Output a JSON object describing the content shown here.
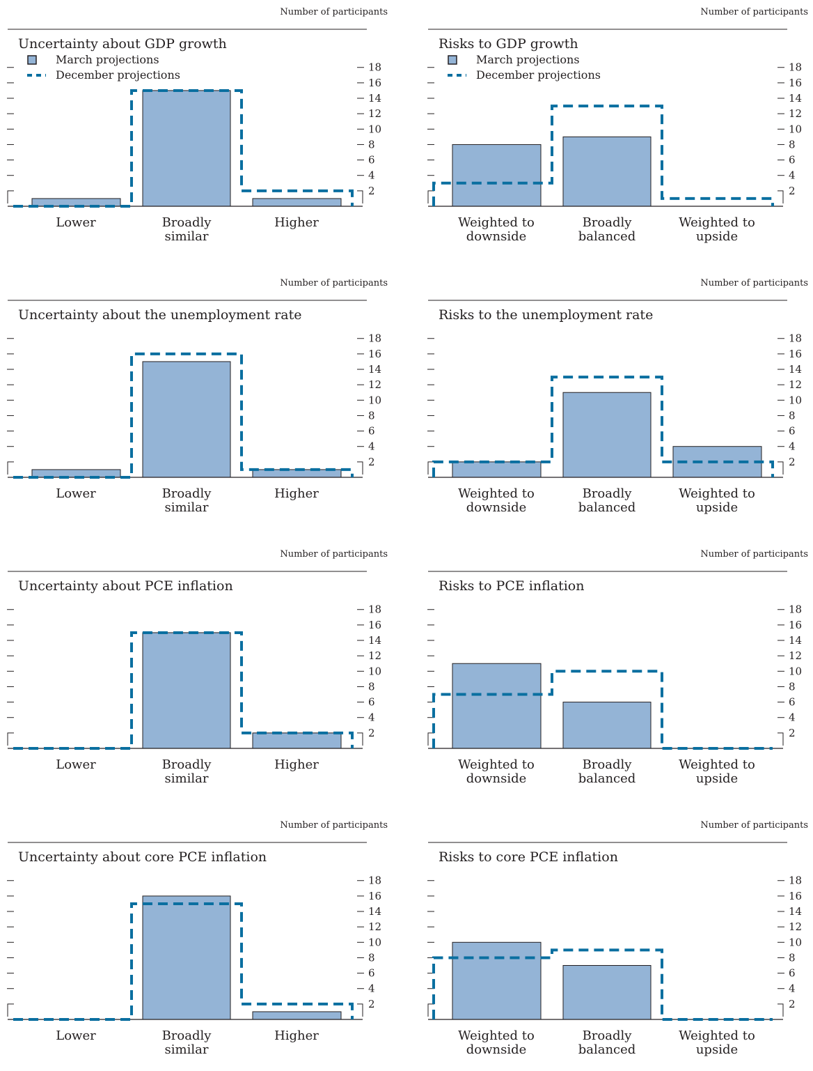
{
  "unit_label": "Number of participants",
  "legend": {
    "march": "March projections",
    "december": "December projections"
  },
  "colors": {
    "bar_fill": "#94b4d6",
    "bar_stroke": "#231f20",
    "december_line": "#0a6fa0"
  },
  "chart_data": [
    {
      "type": "bar",
      "title": "Uncertainty about GDP growth",
      "show_legend": true,
      "categories": [
        "Lower",
        "Broadly similar",
        "Higher"
      ],
      "category_lines": [
        [
          "Lower"
        ],
        [
          "Broadly",
          "similar"
        ],
        [
          "Higher"
        ]
      ],
      "series": [
        {
          "name": "March projections",
          "values": [
            1,
            15,
            1
          ]
        },
        {
          "name": "December projections",
          "values": [
            0,
            15,
            2
          ]
        }
      ],
      "yticks": [
        2,
        4,
        6,
        8,
        10,
        12,
        14,
        16,
        18
      ],
      "ylim": [
        0,
        19
      ]
    },
    {
      "type": "bar",
      "title": "Risks to GDP growth",
      "show_legend": true,
      "categories": [
        "Weighted to downside",
        "Broadly balanced",
        "Weighted to upside"
      ],
      "category_lines": [
        [
          "Weighted to",
          "downside"
        ],
        [
          "Broadly",
          "balanced"
        ],
        [
          "Weighted to",
          "upside"
        ]
      ],
      "series": [
        {
          "name": "March projections",
          "values": [
            8,
            9,
            0
          ]
        },
        {
          "name": "December projections",
          "values": [
            3,
            13,
            1
          ]
        }
      ],
      "yticks": [
        2,
        4,
        6,
        8,
        10,
        12,
        14,
        16,
        18
      ],
      "ylim": [
        0,
        19
      ]
    },
    {
      "type": "bar",
      "title": "Uncertainty about the unemployment rate",
      "show_legend": false,
      "categories": [
        "Lower",
        "Broadly similar",
        "Higher"
      ],
      "category_lines": [
        [
          "Lower"
        ],
        [
          "Broadly",
          "similar"
        ],
        [
          "Higher"
        ]
      ],
      "series": [
        {
          "name": "March projections",
          "values": [
            1,
            15,
            1
          ]
        },
        {
          "name": "December projections",
          "values": [
            0,
            16,
            1
          ]
        }
      ],
      "yticks": [
        2,
        4,
        6,
        8,
        10,
        12,
        14,
        16,
        18
      ],
      "ylim": [
        0,
        19
      ]
    },
    {
      "type": "bar",
      "title": "Risks to the unemployment rate",
      "show_legend": false,
      "categories": [
        "Weighted to downside",
        "Broadly balanced",
        "Weighted to upside"
      ],
      "category_lines": [
        [
          "Weighted to",
          "downside"
        ],
        [
          "Broadly",
          "balanced"
        ],
        [
          "Weighted to",
          "upside"
        ]
      ],
      "series": [
        {
          "name": "March projections",
          "values": [
            2,
            11,
            4
          ]
        },
        {
          "name": "December projections",
          "values": [
            2,
            13,
            2
          ]
        }
      ],
      "yticks": [
        2,
        4,
        6,
        8,
        10,
        12,
        14,
        16,
        18
      ],
      "ylim": [
        0,
        19
      ]
    },
    {
      "type": "bar",
      "title": "Uncertainty about PCE inflation",
      "show_legend": false,
      "categories": [
        "Lower",
        "Broadly similar",
        "Higher"
      ],
      "category_lines": [
        [
          "Lower"
        ],
        [
          "Broadly",
          "similar"
        ],
        [
          "Higher"
        ]
      ],
      "series": [
        {
          "name": "March projections",
          "values": [
            0,
            15,
            2
          ]
        },
        {
          "name": "December projections",
          "values": [
            0,
            15,
            2
          ]
        }
      ],
      "yticks": [
        2,
        4,
        6,
        8,
        10,
        12,
        14,
        16,
        18
      ],
      "ylim": [
        0,
        19
      ]
    },
    {
      "type": "bar",
      "title": "Risks to PCE inflation",
      "show_legend": false,
      "categories": [
        "Weighted to downside",
        "Broadly balanced",
        "Weighted to upside"
      ],
      "category_lines": [
        [
          "Weighted to",
          "downside"
        ],
        [
          "Broadly",
          "balanced"
        ],
        [
          "Weighted to",
          "upside"
        ]
      ],
      "series": [
        {
          "name": "March projections",
          "values": [
            11,
            6,
            0
          ]
        },
        {
          "name": "December projections",
          "values": [
            7,
            10,
            0
          ]
        }
      ],
      "yticks": [
        2,
        4,
        6,
        8,
        10,
        12,
        14,
        16,
        18
      ],
      "ylim": [
        0,
        19
      ]
    },
    {
      "type": "bar",
      "title": "Uncertainty about core PCE inflation",
      "show_legend": false,
      "categories": [
        "Lower",
        "Broadly similar",
        "Higher"
      ],
      "category_lines": [
        [
          "Lower"
        ],
        [
          "Broadly",
          "similar"
        ],
        [
          "Higher"
        ]
      ],
      "series": [
        {
          "name": "March projections",
          "values": [
            0,
            16,
            1
          ]
        },
        {
          "name": "December projections",
          "values": [
            0,
            15,
            2
          ]
        }
      ],
      "yticks": [
        2,
        4,
        6,
        8,
        10,
        12,
        14,
        16,
        18
      ],
      "ylim": [
        0,
        19
      ]
    },
    {
      "type": "bar",
      "title": "Risks to core PCE inflation",
      "show_legend": false,
      "categories": [
        "Weighted to downside",
        "Broadly balanced",
        "Weighted to upside"
      ],
      "category_lines": [
        [
          "Weighted to",
          "downside"
        ],
        [
          "Broadly",
          "balanced"
        ],
        [
          "Weighted to",
          "upside"
        ]
      ],
      "series": [
        {
          "name": "March projections",
          "values": [
            10,
            7,
            0
          ]
        },
        {
          "name": "December projections",
          "values": [
            8,
            9,
            0
          ]
        }
      ],
      "yticks": [
        2,
        4,
        6,
        8,
        10,
        12,
        14,
        16,
        18
      ],
      "ylim": [
        0,
        19
      ]
    }
  ]
}
